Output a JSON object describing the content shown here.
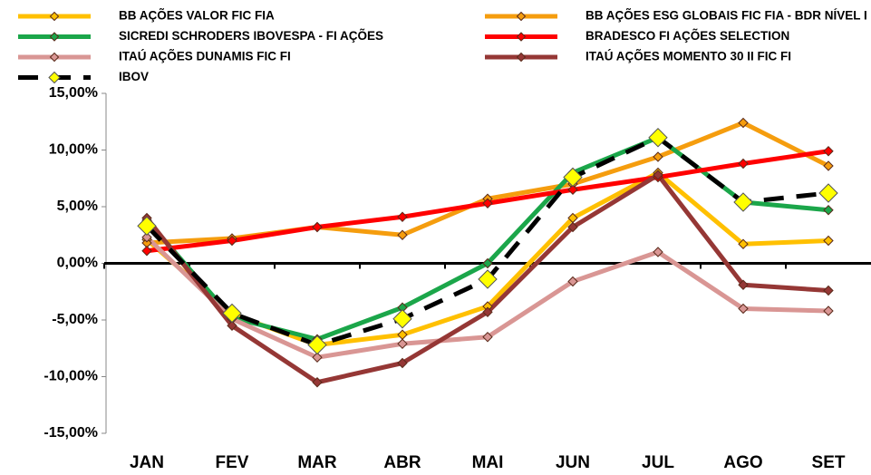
{
  "chart_data": {
    "type": "line",
    "legend": "top",
    "grid": false,
    "categories": [
      "JAN",
      "FEV",
      "MAR",
      "ABR",
      "MAI",
      "JUN",
      "JUL",
      "AGO",
      "SET"
    ],
    "ylim": [
      -15,
      15
    ],
    "yticks": [
      {
        "value": 15,
        "label": "15,00%"
      },
      {
        "value": 10,
        "label": "10,00%"
      },
      {
        "value": 5,
        "label": "5,00%"
      },
      {
        "value": 0,
        "label": "0,00%"
      },
      {
        "value": -5,
        "label": "-5,00%"
      },
      {
        "value": -10,
        "label": "-10,00%"
      },
      {
        "value": -15,
        "label": "-15,00%"
      }
    ],
    "series": [
      {
        "name": "BB AÇÕES VALOR FIC FIA",
        "color": "#FFC000",
        "values": [
          2.1,
          -4.5,
          -7.2,
          -6.3,
          -3.8,
          4.0,
          8.0,
          1.7,
          2.0
        ]
      },
      {
        "name": "BB AÇÕES ESG GLOBAIS FIC FIA - BDR NÍVEL I",
        "color": "#F59D0E",
        "values": [
          1.8,
          2.2,
          3.2,
          2.5,
          5.7,
          7.0,
          9.4,
          12.4,
          8.6
        ]
      },
      {
        "name": "SICREDI SCHRODERS IBOVESPA - FI AÇÕES",
        "color": "#1BA64A",
        "values": [
          3.8,
          -4.8,
          -6.7,
          -3.9,
          0.0,
          8.0,
          11.1,
          5.4,
          4.7
        ]
      },
      {
        "name": "BRADESCO FI AÇÕES SELECTION",
        "color": "#FF0000",
        "values": [
          1.1,
          2.0,
          3.2,
          4.1,
          5.3,
          6.5,
          7.6,
          8.8,
          9.9
        ]
      },
      {
        "name": "ITAÚ AÇÕES DUNAMIS FIC FI",
        "color": "#D99694",
        "values": [
          2.3,
          -4.9,
          -8.3,
          -7.1,
          -6.5,
          -1.6,
          1.0,
          -4.0,
          -4.2
        ]
      },
      {
        "name": "ITAÚ AÇÕES MOMENTO 30 II FIC FI",
        "color": "#953735",
        "values": [
          4.0,
          -5.5,
          -10.5,
          -8.8,
          -4.3,
          3.2,
          7.8,
          -1.9,
          -2.4
        ]
      },
      {
        "name": "IBOV",
        "color": "#000000",
        "marker_color": "#FFFF00",
        "dashed": true,
        "values": [
          3.3,
          -4.4,
          -7.2,
          -4.9,
          -1.4,
          7.6,
          11.1,
          5.4,
          6.2
        ]
      }
    ]
  }
}
